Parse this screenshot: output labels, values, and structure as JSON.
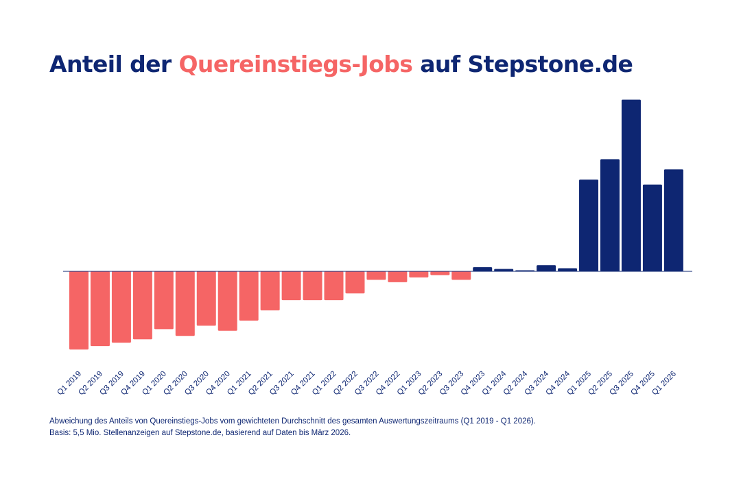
{
  "title": {
    "part1": "Anteil der ",
    "highlight": "Quereinstiegs-Jobs",
    "part2": " auf Stepstone.de"
  },
  "colors": {
    "negative": "#f56565",
    "positive": "#0e2672",
    "text": "#0e2672",
    "baseline": "#0e2672"
  },
  "chart_data": {
    "type": "bar",
    "categories": [
      "Q1 2019",
      "Q2 2019",
      "Q3 2019",
      "Q4 2019",
      "Q1 2020",
      "Q2 2020",
      "Q3 2020",
      "Q4 2020",
      "Q1 2021",
      "Q2 2021",
      "Q3 2021",
      "Q4 2021",
      "Q1 2022",
      "Q2 2022",
      "Q3 2022",
      "Q4 2022",
      "Q1 2023",
      "Q2 2023",
      "Q3 2023",
      "Q4 2023",
      "Q1 2024",
      "Q2 2024",
      "Q3 2024",
      "Q4 2024",
      "Q1 2025",
      "Q2 2025",
      "Q3 2025",
      "Q4 2025",
      "Q1 2026"
    ],
    "values": [
      -23,
      -22,
      -21,
      -20,
      -17,
      -19,
      -16,
      -17.5,
      -14.5,
      -11.5,
      -8.5,
      -8.5,
      -8.5,
      -6.5,
      -2.5,
      -3.2,
      -1.8,
      -1.1,
      -2.5,
      1.2,
      0.7,
      0.3,
      1.8,
      0.9,
      27,
      33,
      50.5,
      25.5,
      30
    ],
    "ylim": [
      -25,
      52
    ],
    "grid": false,
    "legend": "none"
  },
  "footnotes": [
    "Abweichung des Anteils von Quereinstiegs-Jobs vom gewichteten Durchschnitt des gesamten Auswertungszeitraums (Q1 2019 - Q1 2026).",
    "Basis: 5,5 Mio. Stellenanzeigen auf Stepstone.de, basierend auf Daten bis März 2026."
  ]
}
